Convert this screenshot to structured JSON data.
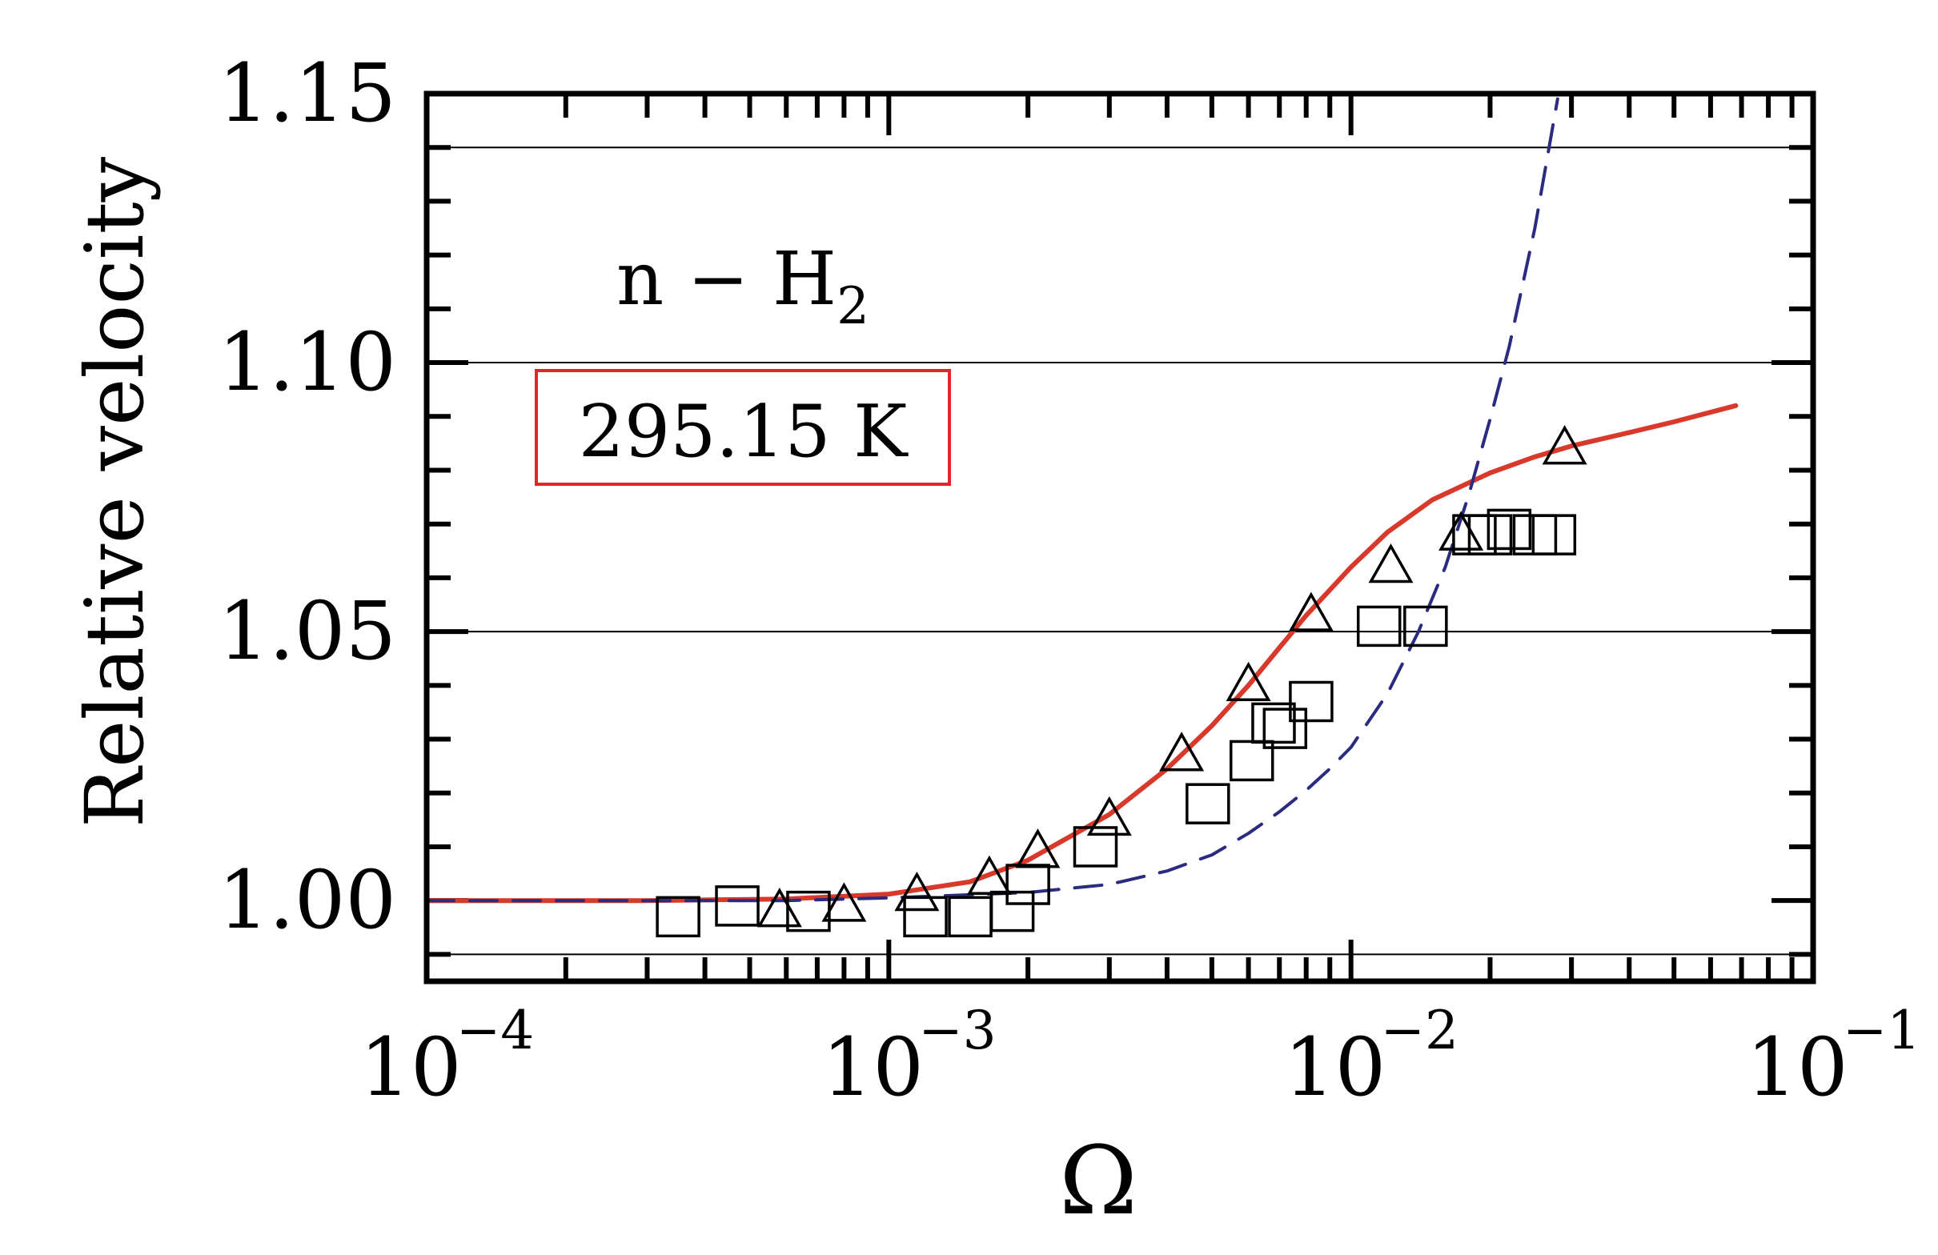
{
  "chart_data": {
    "type": "scatter",
    "title": "",
    "xlabel": "Ω",
    "ylabel": "Relative velocity",
    "xscale": "log",
    "xlim": [
      0.0001,
      0.1
    ],
    "ylim": [
      0.985,
      1.15
    ],
    "x_ticks": [
      {
        "value": 0.0001,
        "base": "10",
        "exp": "−4"
      },
      {
        "value": 0.001,
        "base": "10",
        "exp": "−3"
      },
      {
        "value": 0.01,
        "base": "10",
        "exp": "−2"
      },
      {
        "value": 0.1,
        "base": "10",
        "exp": "−1"
      }
    ],
    "y_ticks": [
      {
        "value": 1.0,
        "label": "1.00"
      },
      {
        "value": 1.05,
        "label": "1.05"
      },
      {
        "value": 1.1,
        "label": "1.10"
      },
      {
        "value": 1.15,
        "label": "1.15"
      }
    ],
    "gridlines_y": [
      0.99,
      1.05,
      1.1,
      1.14
    ],
    "annotations": {
      "gas": {
        "main": "n − H",
        "sub": "2"
      },
      "temperature": "295.15 K"
    },
    "colors": {
      "fit": "#d8392b",
      "dashed": "#2b2b80",
      "box": "#e0262b",
      "marker": "#000000"
    },
    "series": [
      {
        "name": "squares",
        "marker": "square",
        "x": [
          0.00035,
          0.00047,
          0.00067,
          0.0012,
          0.0015,
          0.00185,
          0.002,
          0.0028,
          0.0049,
          0.0061,
          0.0068,
          0.0072,
          0.0082,
          0.0115,
          0.0145,
          0.0185,
          0.02,
          0.022,
          0.025,
          0.0275
        ],
        "y": [
          0.997,
          0.999,
          0.998,
          0.997,
          0.997,
          0.998,
          1.003,
          1.01,
          1.018,
          1.026,
          1.033,
          1.032,
          1.037,
          1.051,
          1.051,
          1.068,
          1.068,
          1.069,
          1.068,
          1.068
        ]
      },
      {
        "name": "triangles",
        "marker": "triangle",
        "x": [
          0.00058,
          0.0008,
          0.00115,
          0.00165,
          0.0021,
          0.003,
          0.0043,
          0.006,
          0.0082,
          0.0122,
          0.0173,
          0.029
        ],
        "y": [
          0.998,
          0.999,
          1.001,
          1.004,
          1.009,
          1.015,
          1.027,
          1.04,
          1.053,
          1.062,
          1.068,
          1.084
        ]
      },
      {
        "name": "fit",
        "style": "solid",
        "x": [
          0.0001,
          0.0003,
          0.0006,
          0.001,
          0.0015,
          0.002,
          0.003,
          0.004,
          0.005,
          0.006,
          0.007,
          0.008,
          0.01,
          0.012,
          0.015,
          0.02,
          0.025,
          0.03,
          0.04,
          0.05,
          0.068
        ],
        "y": [
          1.0,
          1.0,
          1.0003,
          1.0012,
          1.0035,
          1.0075,
          1.016,
          1.0245,
          1.0325,
          1.04,
          1.047,
          1.053,
          1.062,
          1.0685,
          1.0745,
          1.0795,
          1.0825,
          1.0845,
          1.087,
          1.089,
          1.092
        ]
      },
      {
        "name": "model",
        "style": "dashed",
        "x": [
          0.0001,
          0.0006,
          0.001,
          0.002,
          0.003,
          0.004,
          0.005,
          0.006,
          0.007,
          0.008,
          0.009,
          0.01,
          0.012,
          0.014,
          0.016,
          0.018,
          0.02,
          0.022,
          0.025,
          0.028
        ],
        "y": [
          1.0,
          1.0,
          1.0005,
          1.0015,
          1.003,
          1.0055,
          1.0085,
          1.0125,
          1.0165,
          1.0205,
          1.0245,
          1.0285,
          1.0385,
          1.05,
          1.062,
          1.0755,
          1.0895,
          1.103,
          1.125,
          1.149
        ]
      }
    ]
  }
}
